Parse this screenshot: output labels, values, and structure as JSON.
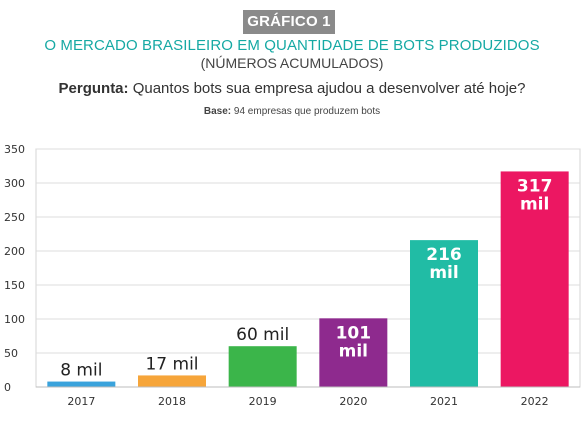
{
  "header": {
    "badge": "GRÁFICO 1",
    "title": "O MERCADO BRASILEIRO EM QUANTIDADE DE BOTS PRODUZIDOS",
    "subtitle": "(NÚMEROS ACUMULADOS)",
    "question_label": "Pergunta:",
    "question_text": "Quantos bots sua empresa ajudou a desenvolver até hoje?",
    "base_label": "Base:",
    "base_text": "94 empresas que produzem bots"
  },
  "colors": {
    "badge": "#8a8a8a",
    "title": "#16a9a4",
    "bar_2017": "#3aa3dc",
    "bar_2018": "#f6a53a",
    "bar_2019": "#3bb54a",
    "bar_2020": "#8e2a8e",
    "bar_2021": "#21bca5",
    "bar_2022": "#ec1762"
  },
  "chart_data": {
    "type": "bar",
    "categories": [
      "2017",
      "2018",
      "2019",
      "2020",
      "2021",
      "2022"
    ],
    "values": [
      8,
      17,
      60,
      101,
      216,
      317
    ],
    "data_labels": [
      "8 mil",
      "17 mil",
      "60 mil",
      "101 mil",
      "216 mil",
      "317 mil"
    ],
    "bar_colors": [
      "#3aa3dc",
      "#f6a53a",
      "#3bb54a",
      "#8e2a8e",
      "#21bca5",
      "#ec1762"
    ],
    "ylim": [
      0,
      350
    ],
    "yticks": [
      0,
      50,
      100,
      150,
      200,
      250,
      300,
      350
    ],
    "grid": true,
    "xlabel": "",
    "ylabel": ""
  }
}
